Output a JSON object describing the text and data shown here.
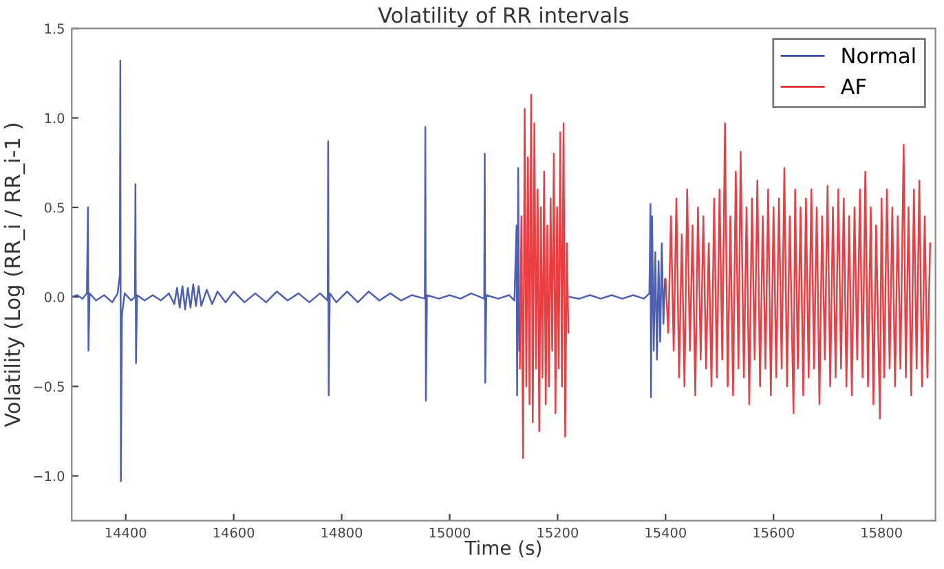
{
  "chart_data": {
    "type": "line",
    "title": "Volatility of RR intervals",
    "xlabel": "Time (s)",
    "ylabel": "Volatility (Log (RR_i / RR_i-1 )",
    "xlim": [
      14300,
      15900
    ],
    "xticks": [
      14400,
      14600,
      14800,
      15000,
      15200,
      15400,
      15600,
      15800
    ],
    "ylim": [
      -1.25,
      1.5
    ],
    "yticks": [
      {
        "value": -1.0,
        "label": "−1.0"
      },
      {
        "value": -0.5,
        "label": "−0.5"
      },
      {
        "value": 0.0,
        "label": "0.0"
      },
      {
        "value": 0.5,
        "label": "0.5"
      },
      {
        "value": 1.0,
        "label": "1.0"
      },
      {
        "value": 1.5,
        "label": "1.5"
      }
    ],
    "grid": false,
    "legend": "top right",
    "marker": "none",
    "line_style": "solid",
    "series": [
      {
        "name": "Normal",
        "color": "#3a4fa8",
        "x": [
          14300,
          14310,
          14320,
          14328,
          14330,
          14331,
          14333,
          14345,
          14360,
          14375,
          14385,
          14389,
          14390,
          14391,
          14393,
          14398,
          14410,
          14417,
          14418,
          14419,
          14421,
          14435,
          14450,
          14465,
          14480,
          14490,
          14495,
          14500,
          14505,
          14510,
          14515,
          14520,
          14525,
          14530,
          14535,
          14540,
          14550,
          14560,
          14570,
          14585,
          14600,
          14620,
          14640,
          14660,
          14680,
          14700,
          14720,
          14740,
          14760,
          14774,
          14775,
          14776,
          14778,
          14790,
          14810,
          14830,
          14850,
          14870,
          14890,
          14910,
          14930,
          14954,
          14955,
          14956,
          14958,
          14980,
          15000,
          15020,
          15040,
          15064,
          15065,
          15066,
          15068,
          15090,
          15110,
          15120,
          15124,
          15125,
          15127,
          15129,
          15130,
          15222,
          15240,
          15260,
          15280,
          15300,
          15320,
          15340,
          15360,
          15370,
          15372,
          15373,
          15375,
          15378,
          15381,
          15384,
          15387,
          15390,
          15393,
          15396,
          15399
        ],
        "values": [
          0.0,
          0.01,
          -0.01,
          0.02,
          0.5,
          -0.3,
          0.02,
          -0.02,
          0.01,
          -0.03,
          0.02,
          0.12,
          1.32,
          -1.03,
          -0.1,
          0.02,
          -0.02,
          0.0,
          0.63,
          -0.37,
          0.01,
          -0.02,
          0.01,
          -0.02,
          0.02,
          -0.04,
          0.05,
          -0.06,
          0.06,
          -0.07,
          0.05,
          -0.06,
          0.07,
          -0.05,
          0.06,
          -0.05,
          0.04,
          -0.04,
          0.03,
          -0.03,
          0.03,
          -0.03,
          0.02,
          -0.03,
          0.03,
          -0.02,
          0.02,
          -0.03,
          0.02,
          -0.02,
          0.87,
          -0.55,
          0.02,
          -0.03,
          0.03,
          -0.03,
          0.03,
          -0.02,
          0.02,
          -0.02,
          0.01,
          -0.01,
          0.95,
          -0.58,
          0.01,
          -0.01,
          0.01,
          -0.01,
          0.02,
          -0.01,
          0.8,
          -0.48,
          0.01,
          -0.01,
          0.01,
          -0.02,
          0.4,
          -0.55,
          0.72,
          -0.3,
          null,
          0.0,
          -0.01,
          0.01,
          -0.01,
          0.01,
          -0.01,
          0.01,
          -0.01,
          0.02,
          0.52,
          -0.56,
          0.45,
          -0.3,
          0.25,
          -0.35,
          0.2,
          -0.25,
          0.3,
          -0.15,
          0.1
        ]
      },
      {
        "name": "AF",
        "color": "#e8292e",
        "x": [
          15130,
          15133,
          15136,
          15139,
          15142,
          15145,
          15148,
          15151,
          15154,
          15157,
          15160,
          15163,
          15166,
          15169,
          15172,
          15175,
          15178,
          15181,
          15184,
          15187,
          15190,
          15193,
          15196,
          15199,
          15202,
          15205,
          15208,
          15211,
          15214,
          15217,
          15220,
          15221,
          15400,
          15405,
          15410,
          15415,
          15420,
          15425,
          15430,
          15435,
          15440,
          15445,
          15450,
          15455,
          15460,
          15465,
          15470,
          15475,
          15480,
          15485,
          15490,
          15495,
          15500,
          15505,
          15510,
          15515,
          15520,
          15525,
          15530,
          15535,
          15539,
          15545,
          15550,
          15555,
          15560,
          15565,
          15570,
          15575,
          15580,
          15585,
          15590,
          15595,
          15600,
          15605,
          15610,
          15615,
          15620,
          15625,
          15630,
          15637,
          15640,
          15645,
          15650,
          15655,
          15660,
          15665,
          15670,
          15675,
          15680,
          15685,
          15690,
          15695,
          15700,
          15705,
          15710,
          15715,
          15720,
          15725,
          15730,
          15735,
          15740,
          15745,
          15750,
          15755,
          15760,
          15765,
          15770,
          15775,
          15780,
          15785,
          15790,
          15797,
          15800,
          15805,
          15810,
          15815,
          15820,
          15825,
          15830,
          15835,
          15841,
          15845,
          15850,
          15855,
          15860,
          15865,
          15870,
          15875,
          15880,
          15885,
          15890
        ],
        "values": [
          -0.4,
          0.45,
          -0.9,
          1.05,
          -0.5,
          0.78,
          -0.6,
          1.13,
          -0.7,
          0.97,
          -0.4,
          0.6,
          -0.75,
          0.5,
          -0.45,
          0.7,
          -0.6,
          0.4,
          -0.5,
          0.55,
          -0.3,
          0.8,
          -0.65,
          0.5,
          -0.4,
          0.92,
          -0.5,
          0.97,
          -0.78,
          0.3,
          -0.2,
          null,
          0.1,
          -0.2,
          0.45,
          -0.3,
          0.55,
          -0.45,
          0.35,
          -0.5,
          0.6,
          -0.3,
          0.4,
          -0.55,
          0.5,
          -0.35,
          0.45,
          -0.4,
          0.3,
          -0.5,
          0.55,
          -0.45,
          0.6,
          -0.35,
          0.97,
          -0.5,
          0.45,
          -0.55,
          0.7,
          -0.4,
          0.81,
          -0.45,
          0.5,
          -0.6,
          0.55,
          -0.35,
          0.65,
          -0.5,
          0.45,
          -0.4,
          0.6,
          -0.55,
          0.5,
          -0.45,
          0.55,
          -0.4,
          0.72,
          -0.5,
          0.45,
          -0.65,
          0.6,
          -0.4,
          0.5,
          -0.55,
          0.55,
          -0.45,
          0.6,
          -0.4,
          0.5,
          -0.6,
          0.45,
          -0.35,
          0.62,
          -0.5,
          0.5,
          -0.45,
          0.6,
          -0.4,
          0.55,
          -0.5,
          0.45,
          -0.55,
          0.5,
          -0.35,
          0.6,
          -0.45,
          0.7,
          -0.5,
          0.5,
          -0.6,
          0.4,
          -0.68,
          0.55,
          -0.45,
          0.6,
          -0.4,
          0.5,
          -0.5,
          0.45,
          -0.4,
          0.85,
          -0.45,
          0.5,
          -0.55,
          0.6,
          -0.4,
          0.65,
          -0.5,
          0.45,
          -0.45,
          0.3
        ]
      }
    ]
  }
}
